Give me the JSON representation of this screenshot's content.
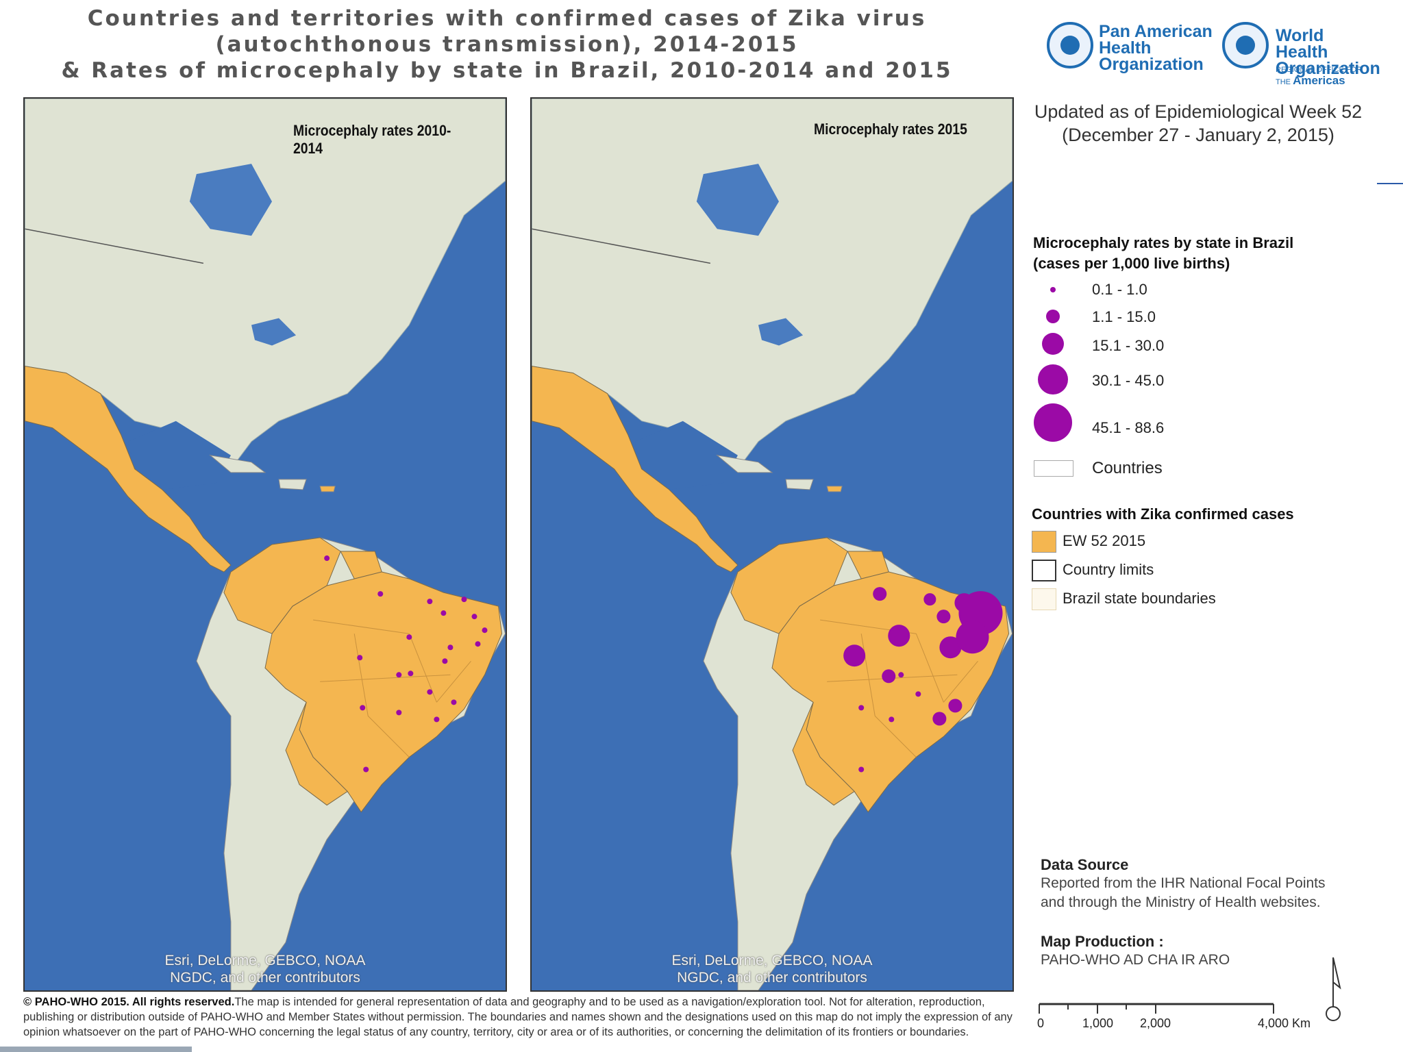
{
  "title": {
    "line1": "Countries and territories with confirmed cases of Zika virus",
    "line2": "(autochthonous transmission), 2014-2015",
    "line3": "& Rates of microcephaly by state in Brazil, 2010-2014 and 2015"
  },
  "logos": {
    "paho": "Pan American\nHealth\nOrganization",
    "who": "World Health\nOrganization",
    "who_sub_small": "REGIONAL OFFICE FOR THE",
    "who_sub_big": "Americas"
  },
  "maps": {
    "left": {
      "label": "Microcephaly rates 2010-2014"
    },
    "right": {
      "label": "Microcephaly rates 2015"
    },
    "attribution_line1": "Esri, DeLorme, GEBCO, NOAA",
    "attribution_line2": "NGDC, and other contributors"
  },
  "updated": {
    "line1": "Updated as of Epidemiological Week 52",
    "line2": "(December 27 - January 2, 2015)"
  },
  "legend": {
    "rates_title_line1": "Microcephaly rates by state in Brazil",
    "rates_title_line2": "(cases per 1,000 live births)",
    "classes": [
      "0.1 - 1.0",
      "1.1 - 15.0",
      "15.1 - 30.0",
      "30.1 - 45.0",
      "45.1 - 88.6"
    ],
    "countries_label": "Countries",
    "zika_title": "Countries with Zika confirmed cases",
    "zika_items": [
      "EW 52 2015",
      "Country limits",
      "Brazil state boundaries"
    ]
  },
  "colors": {
    "zika": "#f4b650",
    "dot": "#9b0aa6",
    "ocean": "#3d6fb5",
    "land": "#dfe3d3"
  },
  "data_source": {
    "head": "Data Source",
    "text": "Reported from the IHR National Focal Points\nand through the Ministry of Health websites."
  },
  "production": {
    "head": "Map Production :",
    "text": "PAHO-WHO AD CHA IR ARO"
  },
  "scale": {
    "labels": [
      "0",
      "1,000",
      "2,000",
      "4,000 Km"
    ]
  },
  "footer": {
    "bold": "© PAHO-WHO 2015. All rights reserved.",
    "text": "The map is intended for general representation of data and geography and to be used as a navigation/exploration tool. Not for alteration, reproduction, publishing or distribution outside of PAHO-WHO and Member States without permission. The boundaries and names shown and the designations used on this map do not imply the expression of any opinion whatsoever on the part of PAHO-WHO concerning the legal status of any country, territory, city or area or of its authorities, or concerning the delimitation of its frontiers or boundaries."
  }
}
